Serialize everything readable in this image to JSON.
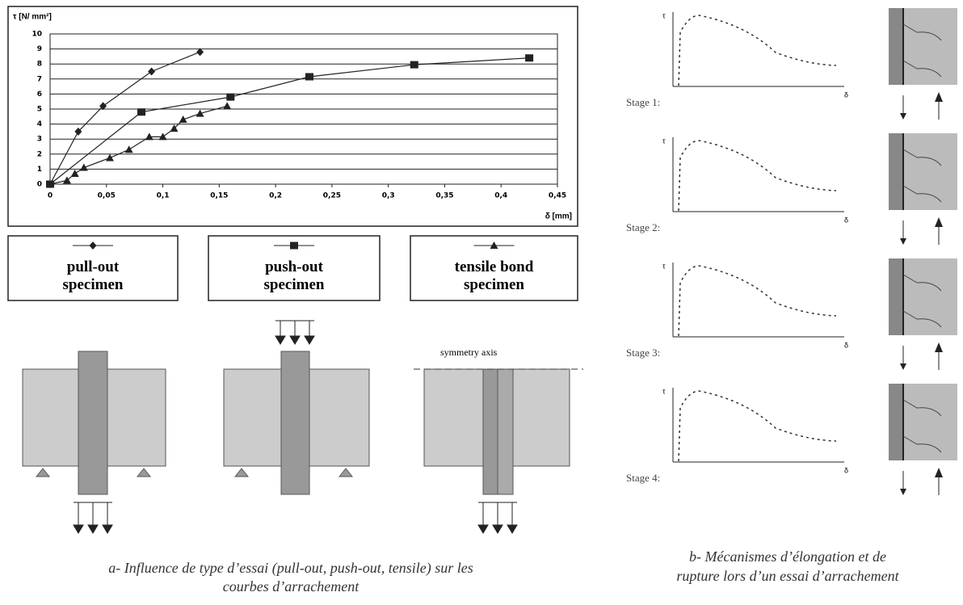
{
  "chart_data": {
    "type": "line",
    "y_label": "τ [N/ mm²]",
    "x_label": "δ [mm]",
    "xlim": [
      0,
      0.45
    ],
    "ylim": [
      0,
      10
    ],
    "xticks": [
      0,
      {
        "value": 0.05,
        "label": "0,05"
      },
      {
        "value": 0.1,
        "label": "0,1"
      },
      {
        "value": 0.15,
        "label": "0,15"
      },
      {
        "value": 0.2,
        "label": "0,2"
      },
      {
        "value": 0.25,
        "label": "0,25"
      },
      {
        "value": 0.3,
        "label": "0,3"
      },
      {
        "value": 0.35,
        "label": "0,35"
      },
      {
        "value": 0.4,
        "label": "0,4"
      },
      {
        "value": 0.45,
        "label": "0,45"
      }
    ],
    "yticks": [
      0,
      1,
      2,
      3,
      4,
      5,
      6,
      7,
      8,
      9,
      10
    ],
    "grid": true,
    "series": [
      {
        "name": "pull-out specimen",
        "marker": "diamond",
        "color": "#222",
        "x": [
          0,
          0.025,
          0.047,
          0.09,
          0.133
        ],
        "values": [
          0,
          3.5,
          5.2,
          7.5,
          8.8
        ]
      },
      {
        "name": "push-out specimen",
        "marker": "square",
        "color": "#222",
        "x": [
          0,
          0.081,
          0.16,
          0.23,
          0.323,
          0.425
        ],
        "values": [
          0,
          4.8,
          5.8,
          7.15,
          7.95,
          8.4
        ]
      },
      {
        "name": "tensile bond specimen",
        "marker": "triangle",
        "color": "#222",
        "x": [
          0,
          0.015,
          0.022,
          0.03,
          0.053,
          0.07,
          0.088,
          0.1,
          0.11,
          0.118,
          0.133,
          0.157
        ],
        "values": [
          0,
          0.25,
          0.7,
          1.1,
          1.75,
          2.3,
          3.15,
          3.15,
          3.7,
          4.3,
          4.7,
          5.2
        ]
      }
    ]
  },
  "diagram": {
    "symmetry_label": "symmetry axis"
  },
  "stages": [
    {
      "label": "Stage 1:",
      "y_axis": "τ",
      "x_axis": "δ"
    },
    {
      "label": "Stage 2:",
      "y_axis": "τ",
      "x_axis": "δ"
    },
    {
      "label": "Stage 3:",
      "y_axis": "τ",
      "x_axis": "δ"
    },
    {
      "label": "Stage 4:",
      "y_axis": "τ",
      "x_axis": "δ"
    }
  ],
  "captions": {
    "a": [
      "a- Influence de type d’essai (pull-out, push-out, tensile) sur les",
      "courbes d’arrachement"
    ],
    "b": [
      "b- Mécanismes d’élongation et de",
      "rupture lors d’un essai d’arrachement"
    ]
  }
}
